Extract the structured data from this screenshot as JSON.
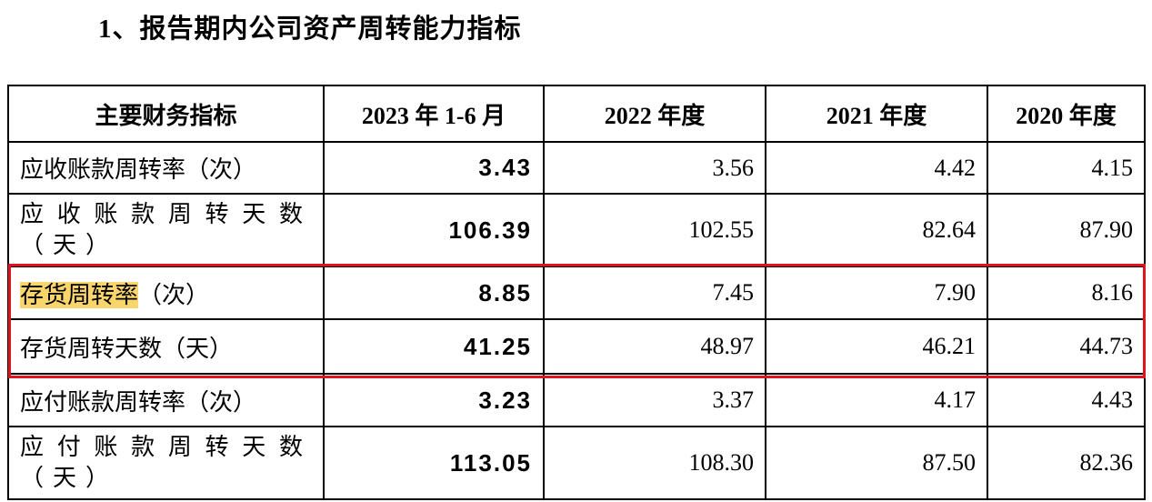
{
  "title": "1、报告期内公司资产周转能力指标",
  "table": {
    "header": [
      "主要财务指标",
      "2023 年 1-6 月",
      "2022 年度",
      "2021 年度",
      "2020 年度"
    ],
    "rows": [
      {
        "name": "应收账款周转率",
        "unit": "（次）",
        "values": [
          "3.43",
          "3.56",
          "4.42",
          "4.15"
        ]
      },
      {
        "name": "应收账款周转天数",
        "unit": "（天）",
        "values": [
          "106.39",
          "102.55",
          "82.64",
          "87.90"
        ]
      },
      {
        "name": "存货周转率",
        "unit": "（次）",
        "values": [
          "8.85",
          "7.45",
          "7.90",
          "8.16"
        ]
      },
      {
        "name": "存货周转天数",
        "unit": "（天）",
        "values": [
          "41.25",
          "48.97",
          "46.21",
          "44.73"
        ]
      },
      {
        "name": "应付账款周转率",
        "unit": "（次）",
        "values": [
          "3.23",
          "3.37",
          "4.17",
          "4.43"
        ]
      },
      {
        "name": "应付账款周转天数",
        "unit": "（天）",
        "values": [
          "113.05",
          "108.30",
          "87.50",
          "82.36"
        ]
      }
    ]
  }
}
